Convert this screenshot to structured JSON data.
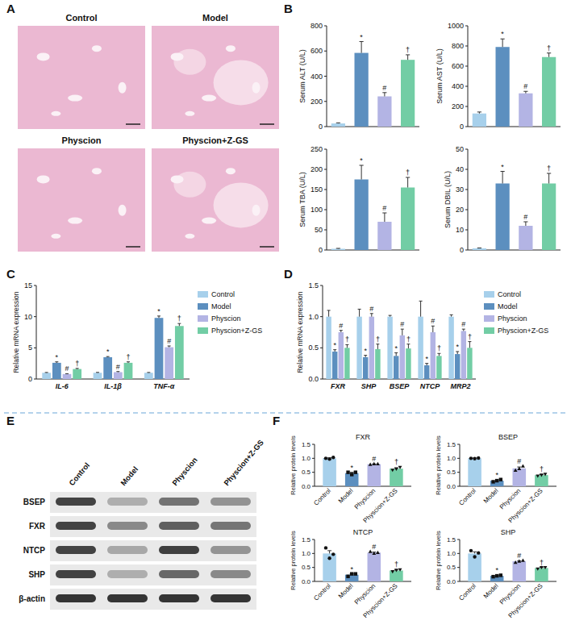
{
  "histology": {
    "panel": "A",
    "labels": [
      "Control",
      "Model",
      "Physcion",
      "Physcion+Z-GS"
    ]
  },
  "chart_data": [
    {
      "type": "bar",
      "panel": "B",
      "ylabel": "Serum ALT (U/L)",
      "categories": [
        null,
        null,
        null,
        null
      ],
      "values": [
        25,
        585,
        240,
        530
      ],
      "errors": [
        5,
        90,
        30,
        40
      ],
      "colors": [
        "#a7d0eb",
        "#5c8fbf",
        "#b3b4e4",
        "#72cda5"
      ],
      "annotations": [
        null,
        "*",
        "#",
        "†"
      ],
      "ylim": [
        0,
        800
      ],
      "yticks": [
        0,
        200,
        400,
        600,
        800
      ],
      "tick_labels": "y"
    },
    {
      "type": "bar",
      "ylabel": "Serum AST (U/L)",
      "categories": [
        null,
        null,
        null,
        null
      ],
      "values": [
        130,
        790,
        330,
        690
      ],
      "errors": [
        15,
        80,
        20,
        40
      ],
      "colors": [
        "#a7d0eb",
        "#5c8fbf",
        "#b3b4e4",
        "#72cda5"
      ],
      "annotations": [
        null,
        "*",
        "#",
        "†"
      ],
      "ylim": [
        0,
        1000
      ],
      "yticks": [
        0,
        200,
        400,
        600,
        800,
        1000
      ],
      "tick_labels": "y"
    },
    {
      "type": "bar",
      "ylabel": "Serum TBA (U/L)",
      "categories": [
        null,
        null,
        null,
        null
      ],
      "values": [
        3,
        175,
        70,
        155
      ],
      "errors": [
        1,
        35,
        22,
        25
      ],
      "colors": [
        "#a7d0eb",
        "#5c8fbf",
        "#b3b4e4",
        "#72cda5"
      ],
      "annotations": [
        null,
        "*",
        "#",
        "†"
      ],
      "ylim": [
        0,
        250
      ],
      "yticks": [
        0,
        50,
        100,
        150,
        200,
        250
      ],
      "tick_labels": "y"
    },
    {
      "type": "bar",
      "ylabel": "Serum DBIL (U/L)",
      "categories": [
        null,
        null,
        null,
        null
      ],
      "values": [
        0.8,
        33,
        12,
        33
      ],
      "errors": [
        0.2,
        6,
        2,
        5
      ],
      "colors": [
        "#a7d0eb",
        "#5c8fbf",
        "#b3b4e4",
        "#72cda5"
      ],
      "annotations": [
        null,
        "*",
        "#",
        "†"
      ],
      "ylim": [
        0,
        50
      ],
      "yticks": [
        0,
        10,
        20,
        30,
        40,
        50
      ],
      "tick_labels": "y"
    },
    {
      "type": "bar",
      "panel": "C",
      "ylabel": "Relative mRNA expression",
      "categories": [
        "IL-6",
        "IL-1β",
        "TNF-α"
      ],
      "series": [
        {
          "name": "Control",
          "color": "#a7d0eb",
          "values": [
            1,
            1,
            1
          ],
          "errors": [
            0.05,
            0.06,
            0.05
          ]
        },
        {
          "name": "Model",
          "color": "#5c8fbf",
          "values": [
            2.6,
            3.5,
            9.8
          ],
          "errors": [
            0.15,
            0.1,
            0.3
          ],
          "annotation": "*"
        },
        {
          "name": "Physcion",
          "color": "#b3b4e4",
          "values": [
            0.8,
            1.1,
            5.1
          ],
          "errors": [
            0.05,
            0.1,
            0.2
          ],
          "annotation": "#"
        },
        {
          "name": "Physcion+Z-GS",
          "color": "#72cda5",
          "values": [
            1.6,
            2.6,
            8.5
          ],
          "errors": [
            0.1,
            0.15,
            0.4
          ],
          "annotation": "†"
        }
      ],
      "legend": "right",
      "ylim": [
        0,
        15
      ],
      "yticks": [
        0,
        5,
        10,
        15
      ]
    },
    {
      "type": "bar",
      "panel": "D",
      "ylabel": "Relative mRNA expression",
      "categories": [
        "FXR",
        "SHP",
        "BSEP",
        "NTCP",
        "MRP2"
      ],
      "series": [
        {
          "name": "Control",
          "color": "#a7d0eb",
          "values": [
            1,
            1,
            1,
            1,
            1
          ],
          "errors": [
            0.1,
            0.12,
            0.02,
            0.25,
            0.03
          ]
        },
        {
          "name": "Model",
          "color": "#5c8fbf",
          "values": [
            0.44,
            0.35,
            0.37,
            0.22,
            0.4
          ],
          "errors": [
            0.03,
            0.03,
            0.05,
            0.03,
            0.04
          ],
          "annotation": "*"
        },
        {
          "name": "Physcion",
          "color": "#b3b4e4",
          "values": [
            0.75,
            1.0,
            0.7,
            0.75,
            0.77
          ],
          "errors": [
            0.03,
            0.05,
            0.1,
            0.1,
            0.03
          ],
          "annotation": "#"
        },
        {
          "name": "Physcion+Z-GS",
          "color": "#72cda5",
          "values": [
            0.5,
            0.48,
            0.49,
            0.37,
            0.5
          ],
          "errors": [
            0.05,
            0.08,
            0.07,
            0.04,
            0.1
          ],
          "annotation": "†"
        }
      ],
      "legend": "right",
      "ylim": [
        0,
        1.5
      ],
      "yticks": [
        {
          "value": 0,
          "label": "0.0"
        },
        {
          "value": 0.5,
          "label": "0.5"
        },
        {
          "value": 1,
          "label": "1.0"
        },
        {
          "value": 1.5,
          "label": "1.5"
        }
      ]
    },
    {
      "type": "bar",
      "panel": "F",
      "title": "FXR",
      "ylabel": "Relative protein levels",
      "categories": [
        null
      ],
      "series": [
        {
          "name": "Control",
          "color": "#a7d0eb",
          "marker": "circle",
          "values": [
            1.0
          ],
          "errors": [
            0.02
          ],
          "points": [
            [
              1.0,
              0.97,
              1.03
            ]
          ]
        },
        {
          "name": "Model",
          "color": "#5c8fbf",
          "marker": "square",
          "values": [
            0.47
          ],
          "errors": [
            0.03
          ],
          "points": [
            [
              0.5,
              0.42,
              0.5
            ]
          ],
          "annotation": "*"
        },
        {
          "name": "Physcion",
          "color": "#b3b4e4",
          "marker": "triangle",
          "values": [
            0.79
          ],
          "errors": [
            0.01
          ],
          "points": [
            [
              0.78,
              0.8,
              0.8
            ]
          ],
          "annotation": "#"
        },
        {
          "name": "Physcion+Z-GS",
          "color": "#72cda5",
          "marker": "triangle-down",
          "values": [
            0.63
          ],
          "errors": [
            0.03
          ],
          "points": [
            [
              0.58,
              0.62,
              0.68
            ]
          ],
          "annotation": "†"
        }
      ],
      "ylim": [
        0,
        1.5
      ],
      "yticks": [
        {
          "value": 0,
          "label": "0.0"
        },
        {
          "value": 0.5,
          "label": "0.5"
        },
        {
          "value": 1,
          "label": "1.0"
        },
        {
          "value": 1.5,
          "label": "1.5"
        }
      ]
    },
    {
      "type": "bar",
      "title": "BSEP",
      "ylabel": "Relative protein levels",
      "categories": [
        null
      ],
      "series": [
        {
          "name": "Control",
          "color": "#a7d0eb",
          "marker": "circle",
          "values": [
            1.0
          ],
          "errors": [
            0.01
          ],
          "points": [
            [
              1.0,
              0.99,
              1.01
            ]
          ]
        },
        {
          "name": "Model",
          "color": "#5c8fbf",
          "marker": "square",
          "values": [
            0.2
          ],
          "errors": [
            0.03
          ],
          "points": [
            [
              0.16,
              0.2,
              0.24
            ]
          ],
          "annotation": "*"
        },
        {
          "name": "Physcion",
          "color": "#b3b4e4",
          "marker": "triangle",
          "values": [
            0.64
          ],
          "errors": [
            0.05
          ],
          "points": [
            [
              0.57,
              0.63,
              0.72
            ]
          ],
          "annotation": "#"
        },
        {
          "name": "Physcion+Z-GS",
          "color": "#72cda5",
          "marker": "triangle-down",
          "values": [
            0.4
          ],
          "errors": [
            0.02
          ],
          "points": [
            [
              0.37,
              0.4,
              0.43
            ]
          ],
          "annotation": "†"
        }
      ],
      "ylim": [
        0,
        1.5
      ],
      "yticks": [
        {
          "value": 0,
          "label": "0.0"
        },
        {
          "value": 0.5,
          "label": "0.5"
        },
        {
          "value": 1,
          "label": "1.0"
        },
        {
          "value": 1.5,
          "label": "1.5"
        }
      ]
    },
    {
      "type": "bar",
      "title": "NTCP",
      "ylabel": "Relative protein levels",
      "categories": [
        null
      ],
      "series": [
        {
          "name": "Control",
          "color": "#a7d0eb",
          "marker": "circle",
          "values": [
            1.0
          ],
          "errors": [
            0.1
          ],
          "points": [
            [
              1.2,
              0.83,
              0.97
            ]
          ]
        },
        {
          "name": "Model",
          "color": "#5c8fbf",
          "marker": "square",
          "values": [
            0.24
          ],
          "errors": [
            0.03
          ],
          "points": [
            [
              0.18,
              0.27,
              0.27
            ]
          ],
          "annotation": "*"
        },
        {
          "name": "Physcion",
          "color": "#b3b4e4",
          "marker": "triangle",
          "values": [
            1.03
          ],
          "errors": [
            0.02
          ],
          "points": [
            [
              1.07,
              1.0,
              1.03
            ]
          ],
          "annotation": "#"
        },
        {
          "name": "Physcion+Z-GS",
          "color": "#72cda5",
          "marker": "triangle-down",
          "values": [
            0.39
          ],
          "errors": [
            0.02
          ],
          "points": [
            [
              0.35,
              0.4,
              0.42
            ]
          ],
          "annotation": "†"
        }
      ],
      "ylim": [
        0,
        1.5
      ],
      "yticks": [
        {
          "value": 0,
          "label": "0.0"
        },
        {
          "value": 0.5,
          "label": "0.5"
        },
        {
          "value": 1,
          "label": "1.0"
        },
        {
          "value": 1.5,
          "label": "1.5"
        }
      ]
    },
    {
      "type": "bar",
      "title": "SHP",
      "ylabel": "Relative protein levels",
      "categories": [
        null
      ],
      "series": [
        {
          "name": "Control",
          "color": "#a7d0eb",
          "marker": "circle",
          "values": [
            1.0
          ],
          "errors": [
            0.06
          ],
          "points": [
            [
              1.1,
              0.88,
              1.02
            ]
          ]
        },
        {
          "name": "Model",
          "color": "#5c8fbf",
          "marker": "square",
          "values": [
            0.2
          ],
          "errors": [
            0.02
          ],
          "points": [
            [
              0.17,
              0.2,
              0.22
            ]
          ],
          "annotation": "*"
        },
        {
          "name": "Physcion",
          "color": "#b3b4e4",
          "marker": "triangle",
          "values": [
            0.72
          ],
          "errors": [
            0.02
          ],
          "points": [
            [
              0.68,
              0.72,
              0.75
            ]
          ],
          "annotation": "#"
        },
        {
          "name": "Physcion+Z-GS",
          "color": "#72cda5",
          "marker": "triangle-down",
          "values": [
            0.48
          ],
          "errors": [
            0.02
          ],
          "points": [
            [
              0.45,
              0.5,
              0.5
            ]
          ],
          "annotation": "†"
        }
      ],
      "ylim": [
        0,
        1.5
      ],
      "yticks": [
        {
          "value": 0,
          "label": "0.0"
        },
        {
          "value": 0.5,
          "label": "0.5"
        },
        {
          "value": 1,
          "label": "1.0"
        },
        {
          "value": 1.5,
          "label": "1.5"
        }
      ]
    }
  ],
  "western_blot": {
    "panel": "E",
    "lanes": [
      "Control",
      "Model",
      "Physcion",
      "Physcion+Z-GS"
    ],
    "rows": [
      "BSEP",
      "FXR",
      "NTCP",
      "SHP",
      "β-actin"
    ]
  }
}
